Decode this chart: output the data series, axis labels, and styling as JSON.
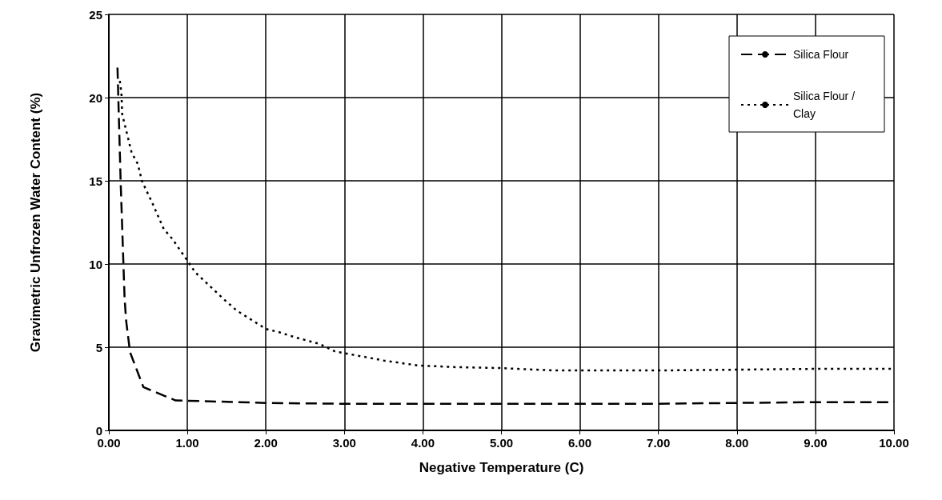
{
  "chart_data": {
    "type": "line",
    "xlabel": "Negative Temperature (C)",
    "ylabel": "Gravimetric Unfrozen Water Content (%)",
    "xlim": [
      0,
      10
    ],
    "xticks": [
      {
        "value": 0,
        "label": "0.00"
      },
      {
        "value": 1,
        "label": "1.00"
      },
      {
        "value": 2,
        "label": "2.00"
      },
      {
        "value": 3,
        "label": "3.00"
      },
      {
        "value": 4,
        "label": "4.00"
      },
      {
        "value": 5,
        "label": "5.00"
      },
      {
        "value": 6,
        "label": "6.00"
      },
      {
        "value": 7,
        "label": "7.00"
      },
      {
        "value": 8,
        "label": "8.00"
      },
      {
        "value": 9,
        "label": "9.00"
      },
      {
        "value": 10,
        "label": "10.00"
      }
    ],
    "ylim": [
      0,
      25
    ],
    "yticks": [
      0,
      5,
      10,
      15,
      20,
      25
    ],
    "grid": true,
    "legend": "top right",
    "marker": "none",
    "series": [
      {
        "name": "Silica Flour",
        "color": "#000000",
        "line_style": "dashed",
        "x": [
          0.11,
          0.15,
          0.2,
          0.22,
          0.27,
          0.44,
          0.85,
          1.66,
          2,
          3,
          4,
          5,
          6,
          7,
          8,
          9,
          10
        ],
        "values": [
          21.8,
          15,
          8,
          6.6,
          4.7,
          2.6,
          1.8,
          1.7,
          1.65,
          1.6,
          1.6,
          1.6,
          1.6,
          1.6,
          1.65,
          1.7,
          1.7
        ]
      },
      {
        "name": "Silica Flour / Clay",
        "color": "#000000",
        "line_style": "dotted",
        "x": [
          0.14,
          0.16,
          0.17,
          0.29,
          0.37,
          0.42,
          0.56,
          0.7,
          0.81,
          1,
          1.1,
          1.46,
          1.63,
          2,
          2.17,
          2.37,
          2.68,
          2.88,
          3.5,
          3.94,
          4.43,
          4.97,
          5.67,
          7,
          9,
          10
        ],
        "values": [
          21,
          20.3,
          19,
          16.7,
          16,
          15,
          13.6,
          12.1,
          11.5,
          10.2,
          9.5,
          7.9,
          7.2,
          6.1,
          5.9,
          5.6,
          5.2,
          4.75,
          4.2,
          3.9,
          3.8,
          3.75,
          3.6,
          3.6,
          3.7,
          3.7
        ]
      }
    ]
  }
}
